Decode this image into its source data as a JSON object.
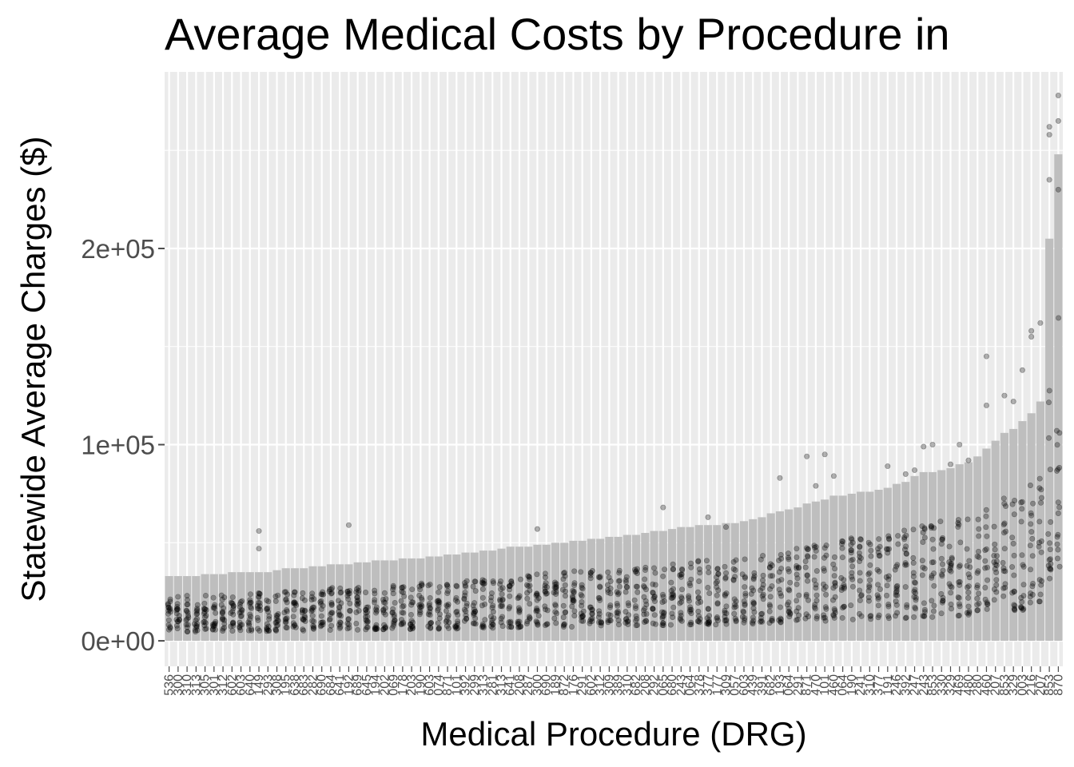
{
  "chart_data": {
    "type": "bar",
    "overlay": "jitter-points",
    "title": "Average Medical Costs by Procedure in",
    "xlabel": "Medical Procedure (DRG)",
    "ylabel": "Statewide Average Charges ($)",
    "ylim": [
      -13000,
      290000
    ],
    "yticks": [
      0,
      100000,
      200000
    ],
    "ytick_labels": [
      "0e+00",
      "1e+05",
      "2e+05"
    ],
    "grid": true,
    "legend": "none",
    "colors": {
      "panel": "#ebebeb",
      "grid": "#ffffff",
      "bar": "#bebebe",
      "point": "#000000",
      "tick": "#4d4d4d"
    },
    "num_categories": 100,
    "categories": [
      "536",
      "300",
      "310",
      "313",
      "305",
      "301",
      "312",
      "602",
      "603",
      "640",
      "149",
      "293",
      "308",
      "195",
      "638",
      "683",
      "282",
      "690",
      "684",
      "641",
      "192",
      "689",
      "645",
      "194",
      "202",
      "069",
      "178",
      "203",
      "190",
      "603",
      "074",
      "871",
      "101",
      "392",
      "299",
      "313",
      "281",
      "313",
      "641",
      "208",
      "287",
      "300",
      "690",
      "189",
      "872",
      "176",
      "291",
      "602",
      "312",
      "309",
      "389",
      "310",
      "682",
      "208",
      "292",
      "065",
      "680",
      "243",
      "064",
      "378",
      "377",
      "177",
      "309",
      "057",
      "603",
      "439",
      "391",
      "682",
      "193",
      "064",
      "291",
      "871",
      "470",
      "101",
      "460",
      "064",
      "190",
      "241",
      "310",
      "377",
      "191",
      "246",
      "392",
      "247",
      "243",
      "853",
      "330",
      "329",
      "469",
      "480",
      "280",
      "460",
      "207",
      "853",
      "329",
      "003",
      "216",
      "207",
      "853",
      "870"
    ],
    "x_tick_labels": [
      "536",
      "300",
      "310",
      "313",
      "305",
      "301",
      "312",
      "602",
      "603",
      "640",
      "149",
      "293",
      "308",
      "195",
      "638",
      "683",
      "282",
      "690",
      "684",
      "641",
      "192",
      "689",
      "645",
      "194",
      "202",
      "069",
      "178",
      "203",
      "190",
      "603",
      "074",
      "871",
      "101",
      "392",
      "299",
      "313",
      "281",
      "313",
      "641",
      "208",
      "287",
      "300",
      "690",
      "189",
      "872",
      "176",
      "291",
      "602",
      "312",
      "309",
      "389",
      "310",
      "682",
      "208",
      "292",
      "065",
      "680",
      "243",
      "064",
      "378",
      "377",
      "177",
      "309",
      "057",
      "603",
      "439",
      "391",
      "682",
      "193",
      "064",
      "291",
      "871",
      "470",
      "101",
      "460",
      "064",
      "190",
      "241",
      "310",
      "377",
      "191",
      "246",
      "392",
      "247",
      "243",
      "853",
      "330",
      "329",
      "469",
      "480",
      "280",
      "460",
      "207",
      "853",
      "329",
      "003",
      "216",
      "207",
      "853",
      "870"
    ],
    "bar_values": [
      33000,
      33000,
      33000,
      33000,
      34000,
      34000,
      34000,
      35000,
      35000,
      35000,
      35000,
      35000,
      36000,
      37000,
      37000,
      37000,
      38000,
      38000,
      39000,
      39000,
      39000,
      40000,
      40000,
      41000,
      41000,
      41000,
      42000,
      42000,
      42000,
      43000,
      43000,
      44000,
      44000,
      45000,
      45000,
      46000,
      46000,
      47000,
      48000,
      48000,
      48000,
      49000,
      49000,
      50000,
      50000,
      51000,
      51000,
      52000,
      52000,
      53000,
      53000,
      54000,
      54000,
      55000,
      56000,
      56000,
      57000,
      58000,
      58000,
      59000,
      59000,
      59000,
      60000,
      60000,
      61000,
      62000,
      63000,
      65000,
      66000,
      67000,
      68000,
      70000,
      71000,
      72000,
      74000,
      74000,
      75000,
      76000,
      76000,
      77000,
      78000,
      80000,
      81000,
      84000,
      86000,
      86000,
      87000,
      88000,
      90000,
      91000,
      94000,
      98000,
      102000,
      106000,
      108000,
      112000,
      116000,
      122000,
      205000,
      248000
    ],
    "outlier_highs": [
      {
        "category_index": 10,
        "value": 56000
      },
      {
        "category_index": 10,
        "value": 47000
      },
      {
        "category_index": 20,
        "value": 59000
      },
      {
        "category_index": 41,
        "value": 57000
      },
      {
        "category_index": 55,
        "value": 68000
      },
      {
        "category_index": 60,
        "value": 63000
      },
      {
        "category_index": 62,
        "value": 58000
      },
      {
        "category_index": 68,
        "value": 83000
      },
      {
        "category_index": 71,
        "value": 94000
      },
      {
        "category_index": 73,
        "value": 95000
      },
      {
        "category_index": 72,
        "value": 79000
      },
      {
        "category_index": 74,
        "value": 84000
      },
      {
        "category_index": 80,
        "value": 89000
      },
      {
        "category_index": 82,
        "value": 85000
      },
      {
        "category_index": 83,
        "value": 87000
      },
      {
        "category_index": 84,
        "value": 99000
      },
      {
        "category_index": 85,
        "value": 100000
      },
      {
        "category_index": 87,
        "value": 90000
      },
      {
        "category_index": 88,
        "value": 100000
      },
      {
        "category_index": 89,
        "value": 92000
      },
      {
        "category_index": 91,
        "value": 120000
      },
      {
        "category_index": 91,
        "value": 145000
      },
      {
        "category_index": 93,
        "value": 125000
      },
      {
        "category_index": 94,
        "value": 122000
      },
      {
        "category_index": 95,
        "value": 138000
      },
      {
        "category_index": 96,
        "value": 155000
      },
      {
        "category_index": 96,
        "value": 158000
      },
      {
        "category_index": 97,
        "value": 162000
      },
      {
        "category_index": 98,
        "value": 235000
      },
      {
        "category_index": 98,
        "value": 262000
      },
      {
        "category_index": 98,
        "value": 258000
      },
      {
        "category_index": 99,
        "value": 265000
      },
      {
        "category_index": 99,
        "value": 278000
      },
      {
        "category_index": 99,
        "value": 230000
      }
    ]
  }
}
